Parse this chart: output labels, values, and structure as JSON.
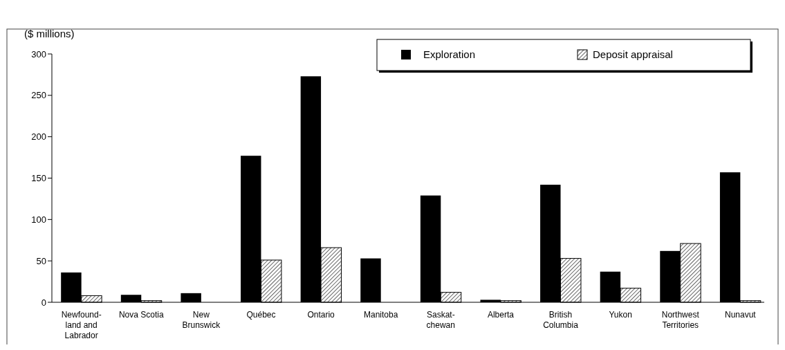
{
  "chart_data": {
    "type": "bar",
    "ylabel": "($ millions)",
    "categories": [
      "Newfound-\nland and\nLabrador",
      "Nova Scotia",
      "New\nBrunswick",
      "Québec",
      "Ontario",
      "Manitoba",
      "Saskat-\nchewan",
      "Alberta",
      "British\nColumbia",
      "Yukon",
      "Northwest\nTerritories",
      "Nunavut"
    ],
    "series": [
      {
        "name": "Exploration",
        "color": "#000000",
        "values": [
          36,
          9,
          11,
          177,
          273,
          53,
          129,
          3,
          142,
          37,
          62,
          157
        ]
      },
      {
        "name": "Deposit appraisal",
        "color": "#000000",
        "values": [
          8,
          2,
          null,
          51,
          66,
          null,
          12,
          2,
          53,
          17,
          71,
          2
        ]
      }
    ],
    "ylim": [
      0,
      300
    ],
    "yticks": [
      0,
      50,
      100,
      150,
      200,
      250,
      300
    ],
    "grid": false,
    "legend": "top right"
  }
}
